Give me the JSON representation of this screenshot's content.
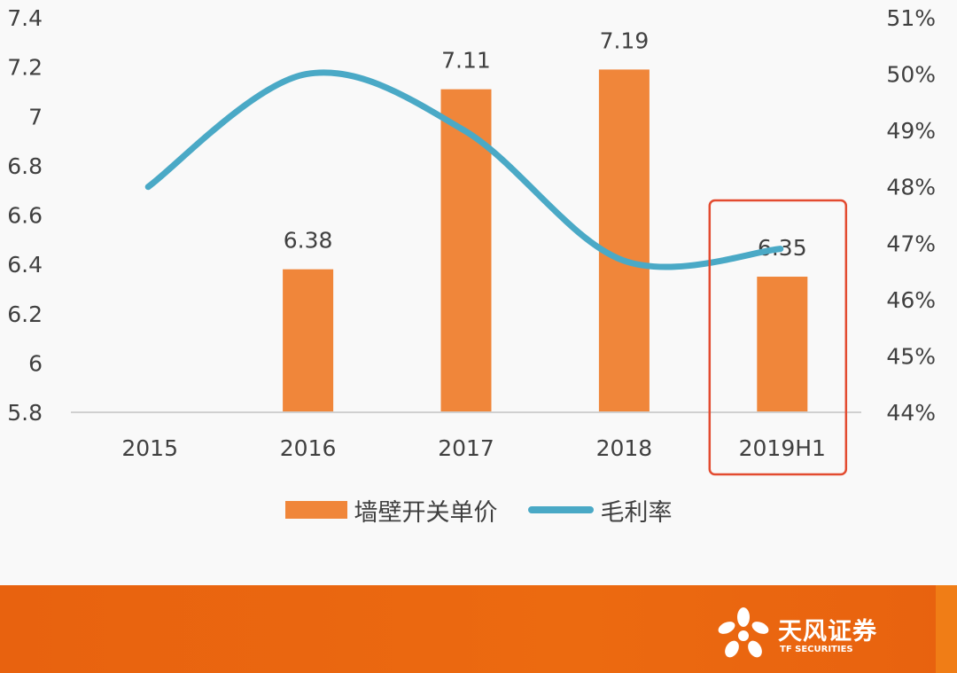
{
  "chart_data": {
    "type": "bar",
    "categories": [
      "2015",
      "2016",
      "2017",
      "2018",
      "2019H1"
    ],
    "series": [
      {
        "name": "墙壁开关单价",
        "type": "bar",
        "axis": "left",
        "color": "#f0863a",
        "values": [
          null,
          6.38,
          7.11,
          7.19,
          6.35
        ],
        "data_labels": [
          "",
          "6.38",
          "7.11",
          "7.19",
          "6.35"
        ]
      },
      {
        "name": "毛利率",
        "type": "line",
        "axis": "right",
        "color": "#4aa9c6",
        "smooth": true,
        "values": [
          48.0,
          50.0,
          49.0,
          46.7,
          46.9
        ]
      }
    ],
    "y_left": {
      "min": 5.8,
      "max": 7.4,
      "ticks": [
        5.8,
        6.0,
        6.2,
        6.4,
        6.6,
        6.8,
        7.0,
        7.2,
        7.4
      ],
      "tick_labels": [
        "5.8",
        "6",
        "6.2",
        "6.4",
        "6.6",
        "6.8",
        "7",
        "7.2",
        "7.4"
      ]
    },
    "y_right": {
      "min": 44,
      "max": 51,
      "unit": "%",
      "ticks": [
        44,
        45,
        46,
        47,
        48,
        49,
        50,
        51
      ],
      "tick_labels": [
        "44%",
        "45%",
        "46%",
        "47%",
        "48%",
        "49%",
        "50%",
        "51%"
      ]
    },
    "highlight_category": "2019H1",
    "highlight_color": "#e34b30",
    "grid": false,
    "legend_position": "bottom"
  },
  "legend": {
    "bar_label": "墙壁开关单价",
    "line_label": "毛利率"
  },
  "footer": {
    "logo_cn": "天风证券",
    "logo_en": "TF SECURITIES"
  }
}
